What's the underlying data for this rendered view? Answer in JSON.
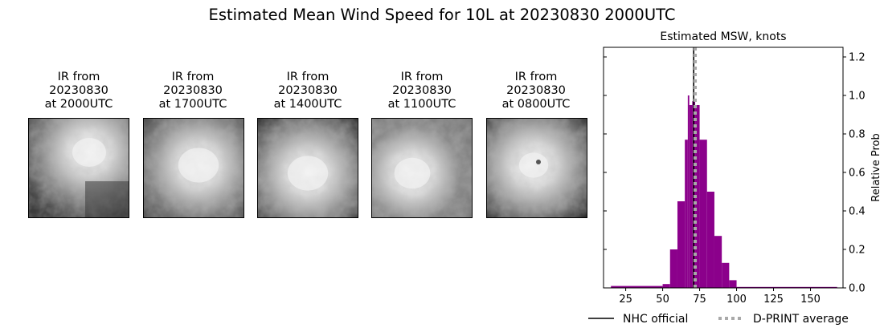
{
  "suptitle": "Estimated Mean Wind Speed for 10L at 20230830 2000UTC",
  "panels": [
    {
      "title_line1": "IR from",
      "title_line2": "20230830",
      "title_line3": "at 2000UTC",
      "image_icon": "ir-satellite-image"
    },
    {
      "title_line1": "IR from",
      "title_line2": "20230830",
      "title_line3": "at 1700UTC",
      "image_icon": "ir-satellite-image"
    },
    {
      "title_line1": "IR from",
      "title_line2": "20230830",
      "title_line3": "at 1400UTC",
      "image_icon": "ir-satellite-image"
    },
    {
      "title_line1": "IR from",
      "title_line2": "20230830",
      "title_line3": "at 1100UTC",
      "image_icon": "ir-satellite-image"
    },
    {
      "title_line1": "IR from",
      "title_line2": "20230830",
      "title_line3": "at 0800UTC",
      "image_icon": "ir-satellite-image"
    }
  ],
  "chart_data": {
    "type": "bar",
    "title": "Estimated MSW, knots",
    "xlabel": "",
    "ylabel": "Relative Prob",
    "xlim": [
      10,
      172
    ],
    "ylim": [
      0,
      1.25
    ],
    "xticks": [
      25,
      50,
      75,
      100,
      125,
      150
    ],
    "yticks": [
      0.0,
      0.2,
      0.4,
      0.6,
      0.8,
      1.0,
      1.2
    ],
    "ytick_labels": [
      "0.0",
      "0.2",
      "0.4",
      "0.6",
      "0.8",
      "1.0",
      "1.2"
    ],
    "y_axis_side": "right",
    "bar_color": "#8b008b",
    "bins": [
      {
        "x0": 15,
        "x1": 50,
        "value": 0.01
      },
      {
        "x0": 50,
        "x1": 55,
        "value": 0.02
      },
      {
        "x0": 55,
        "x1": 60,
        "value": 0.2
      },
      {
        "x0": 60,
        "x1": 65,
        "value": 0.45
      },
      {
        "x0": 65,
        "x1": 67,
        "value": 0.77
      },
      {
        "x0": 67,
        "x1": 68,
        "value": 1.0
      },
      {
        "x0": 68,
        "x1": 70,
        "value": 0.95
      },
      {
        "x0": 70,
        "x1": 72,
        "value": 0.97
      },
      {
        "x0": 72,
        "x1": 75,
        "value": 0.95
      },
      {
        "x0": 75,
        "x1": 80,
        "value": 0.77
      },
      {
        "x0": 80,
        "x1": 85,
        "value": 0.5
      },
      {
        "x0": 85,
        "x1": 90,
        "value": 0.27
      },
      {
        "x0": 90,
        "x1": 95,
        "value": 0.13
      },
      {
        "x0": 95,
        "x1": 100,
        "value": 0.04
      },
      {
        "x0": 100,
        "x1": 168,
        "value": 0.005
      }
    ],
    "vlines": [
      {
        "name": "NHC official",
        "x": 71,
        "color": "#000000",
        "style": "solid"
      },
      {
        "name": "D-PRINT average",
        "x": 72,
        "color": "#a9a9a9",
        "style": "dotted"
      }
    ],
    "legend": {
      "placement": "bottom",
      "entries": [
        "NHC official",
        "D-PRINT average"
      ]
    }
  }
}
